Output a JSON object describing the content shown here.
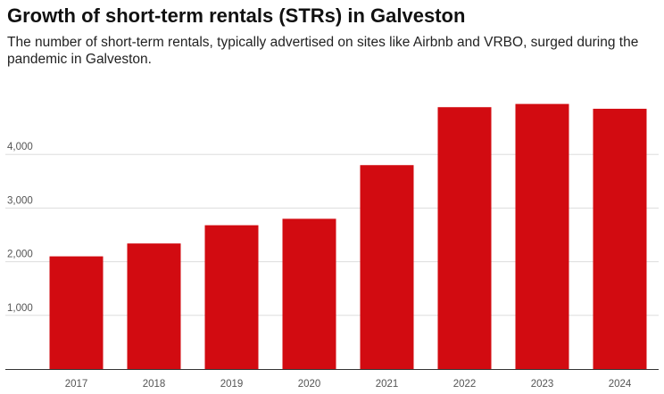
{
  "title": "Growth of short-term rentals (STRs) in Galveston",
  "subtitle": "The number of short-term rentals, typically advertised on sites like Airbnb and VRBO, surged during the pandemic in Galveston.",
  "colors": {
    "bar": "#d20b11",
    "grid": "#dddddd",
    "axis": "#333333",
    "tick_text": "#555555"
  },
  "chart_data": {
    "type": "bar",
    "title": "Growth of short-term rentals (STRs) in Galveston",
    "subtitle": "The number of short-term rentals, typically advertised on sites like Airbnb and VRBO, surged during the pandemic in Galveston.",
    "categories": [
      "2017",
      "2018",
      "2019",
      "2020",
      "2021",
      "2022",
      "2023",
      "2024"
    ],
    "values": [
      2100,
      2340,
      2680,
      2800,
      3800,
      4880,
      4940,
      4850
    ],
    "xlabel": "",
    "ylabel": "",
    "ylim": [
      0,
      5000
    ],
    "yticks": [
      1000,
      2000,
      3000,
      4000
    ],
    "ytick_labels": [
      "1,000",
      "2,000",
      "3,000",
      "4,000"
    ],
    "grid": true,
    "legend": "none"
  }
}
